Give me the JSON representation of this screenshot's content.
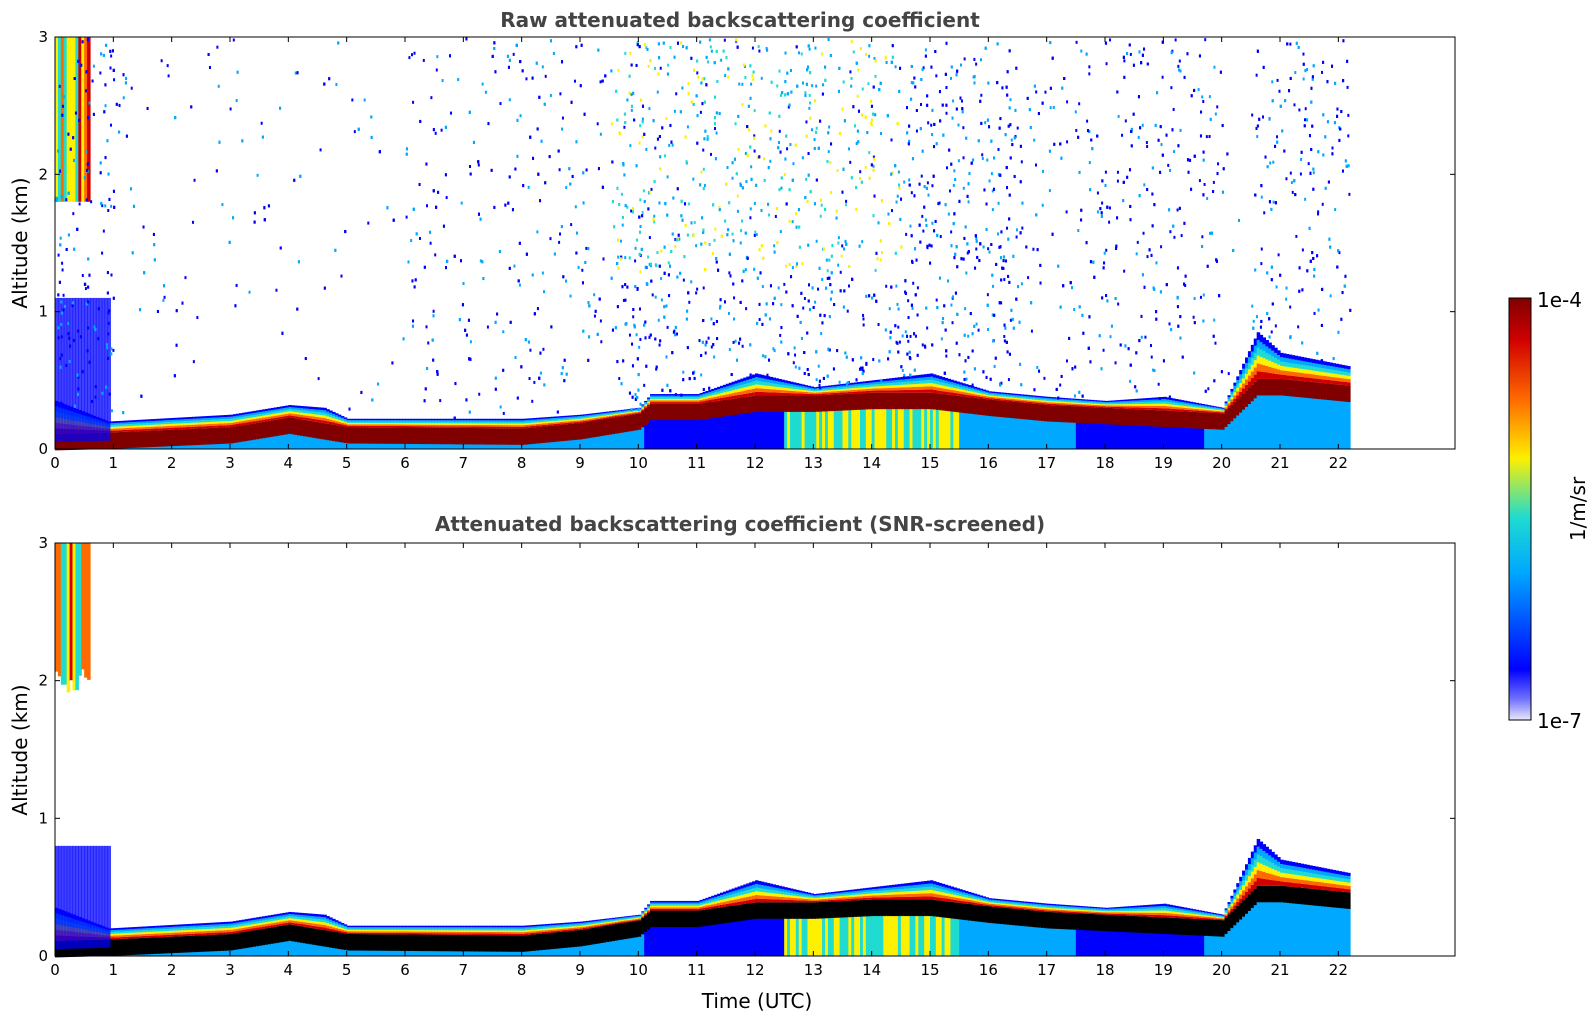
{
  "chart_data": [
    {
      "type": "heatmap",
      "title": "Raw attenuated backscattering coefficient",
      "xlabel": "",
      "ylabel": "Altitude (km)",
      "xlim": [
        0,
        24
      ],
      "ylim": [
        0,
        3
      ],
      "x_ticks": [
        "0",
        "1",
        "2",
        "3",
        "4",
        "5",
        "6",
        "7",
        "8",
        "9",
        "10",
        "11",
        "12",
        "13",
        "14",
        "15",
        "16",
        "17",
        "18",
        "19",
        "20",
        "21",
        "22"
      ],
      "y_ticks": [
        "0",
        "1",
        "2",
        "3"
      ],
      "data_end_hour": 22.2,
      "screened": false,
      "layer_top_km": [
        [
          0,
          0.35
        ],
        [
          0.9,
          0.2
        ],
        [
          3,
          0.25
        ],
        [
          4,
          0.32
        ],
        [
          4.6,
          0.3
        ],
        [
          5,
          0.22
        ],
        [
          8,
          0.22
        ],
        [
          9,
          0.25
        ],
        [
          10,
          0.3
        ],
        [
          10.2,
          0.4
        ],
        [
          11,
          0.4
        ],
        [
          12,
          0.55
        ],
        [
          13,
          0.45
        ],
        [
          14,
          0.5
        ],
        [
          15,
          0.55
        ],
        [
          16,
          0.42
        ],
        [
          17,
          0.38
        ],
        [
          18,
          0.35
        ],
        [
          19,
          0.38
        ],
        [
          20,
          0.3
        ],
        [
          20.6,
          0.85
        ],
        [
          21,
          0.7
        ],
        [
          22.2,
          0.6
        ]
      ],
      "max_km": [
        [
          0,
          0.05
        ],
        [
          0.9,
          0.06
        ],
        [
          3,
          0.1
        ],
        [
          4,
          0.17
        ],
        [
          5,
          0.1
        ],
        [
          8,
          0.09
        ],
        [
          9,
          0.13
        ],
        [
          10,
          0.2
        ],
        [
          10.2,
          0.27
        ],
        [
          11,
          0.27
        ],
        [
          12,
          0.33
        ],
        [
          13,
          0.33
        ],
        [
          14,
          0.35
        ],
        [
          15,
          0.35
        ],
        [
          16,
          0.3
        ],
        [
          17,
          0.26
        ],
        [
          18,
          0.24
        ],
        [
          19,
          0.22
        ],
        [
          20,
          0.2
        ],
        [
          20.6,
          0.45
        ],
        [
          21,
          0.45
        ],
        [
          22.2,
          0.4
        ]
      ]
    },
    {
      "type": "heatmap",
      "title": "Attenuated backscattering coefficient (SNR-screened)",
      "xlabel": "Time (UTC)",
      "ylabel": "Altitude (km)",
      "xlim": [
        0,
        24
      ],
      "ylim": [
        0,
        3
      ],
      "x_ticks": [
        "0",
        "1",
        "2",
        "3",
        "4",
        "5",
        "6",
        "7",
        "8",
        "9",
        "10",
        "11",
        "12",
        "13",
        "14",
        "15",
        "16",
        "17",
        "18",
        "19",
        "20",
        "21",
        "22"
      ],
      "y_ticks": [
        "0",
        "1",
        "2",
        "3"
      ],
      "data_end_hour": 22.2,
      "screened": true
    }
  ],
  "colorbar": {
    "label": "1/m/sr",
    "max_label": "1e-4",
    "min_label": "1e-7",
    "colormap": [
      "#e8e8f8",
      "#0000ff",
      "#00a8ff",
      "#1fdbd0",
      "#fdf000",
      "#ff6a00",
      "#d00000",
      "#800000"
    ]
  },
  "colors": {
    "dark_layer": "#000000",
    "frame": "#000000"
  }
}
